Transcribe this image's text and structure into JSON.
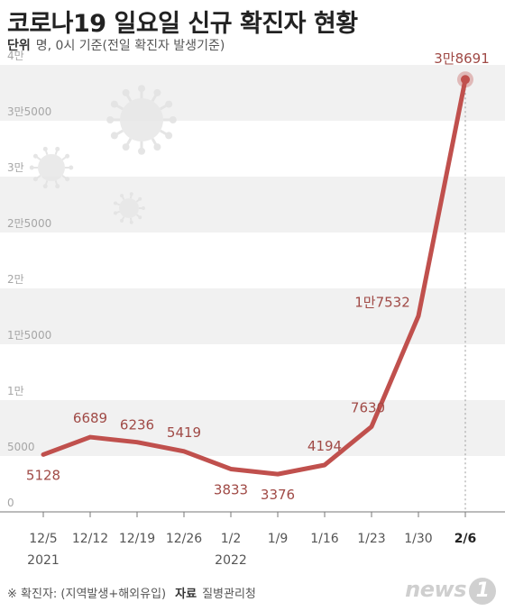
{
  "title": "코로나19 일요일 신규 확진자 현황",
  "unit_label": "단위",
  "unit_text": "명, 0시 기준(전일 확진자 발생기준)",
  "footer_note": "※ 확진자: (지역발생+해외유입)",
  "source_label": "자료",
  "source_text": "질병관리청",
  "logo_text": "news",
  "logo_mark": "1",
  "colors": {
    "line": "#c0504d",
    "label": "#a04a46",
    "band": "#f1f1f1",
    "axis": "#777777",
    "logo": "#cfcfcf"
  },
  "chart_data": {
    "type": "line",
    "title": "코로나19 일요일 신규 확진자 현황",
    "x": [
      "12/5",
      "12/12",
      "12/19",
      "12/26",
      "1/2",
      "1/9",
      "1/16",
      "1/23",
      "1/30",
      "2/6"
    ],
    "year_labels": [
      {
        "index": 0,
        "text": "2021"
      },
      {
        "index": 4,
        "text": "2022"
      }
    ],
    "series": [
      {
        "values": [
          5128,
          6689,
          6236,
          5419,
          3833,
          3376,
          4194,
          7630,
          17532,
          38691
        ],
        "labels": [
          "5128",
          "6689",
          "6236",
          "5419",
          "3833",
          "3376",
          "4194",
          "7630",
          "1만7532",
          "3만8691"
        ]
      }
    ],
    "y_ticks": [
      {
        "value": 0,
        "label": "0"
      },
      {
        "value": 5000,
        "label": "5000"
      },
      {
        "value": 10000,
        "label": "1만"
      },
      {
        "value": 15000,
        "label": "1만5000"
      },
      {
        "value": 20000,
        "label": "2만"
      },
      {
        "value": 25000,
        "label": "2만5000"
      },
      {
        "value": 30000,
        "label": "3만"
      },
      {
        "value": 35000,
        "label": "3만5000"
      },
      {
        "value": 40000,
        "label": "4만"
      }
    ],
    "ylim": [
      0,
      40000
    ],
    "grid": "alternating horizontal bands",
    "highlight_index": 9
  }
}
